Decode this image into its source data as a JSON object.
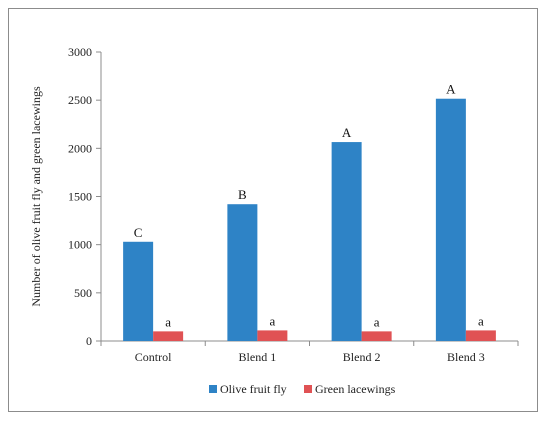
{
  "chart_data": {
    "type": "bar",
    "categories": [
      "Control",
      "Blend 1",
      "Blend 2",
      "Blend 3"
    ],
    "series": [
      {
        "name": "Olive fruit fly",
        "color": "#2e83c6",
        "values": [
          1030,
          1420,
          2065,
          2515
        ],
        "labels": [
          "C",
          "B",
          "A",
          "A"
        ]
      },
      {
        "name": "Green lacewings",
        "color": "#e05254",
        "values": [
          100,
          110,
          100,
          110
        ],
        "labels": [
          "a",
          "a",
          "a",
          "a"
        ]
      }
    ],
    "ylabel": "Number of olive fruit fly and green lacewings",
    "ylim": [
      0,
      3000
    ],
    "yticks": [
      0,
      500,
      1000,
      1500,
      2000,
      2500,
      3000
    ],
    "grid": false,
    "legend": "bottom"
  }
}
